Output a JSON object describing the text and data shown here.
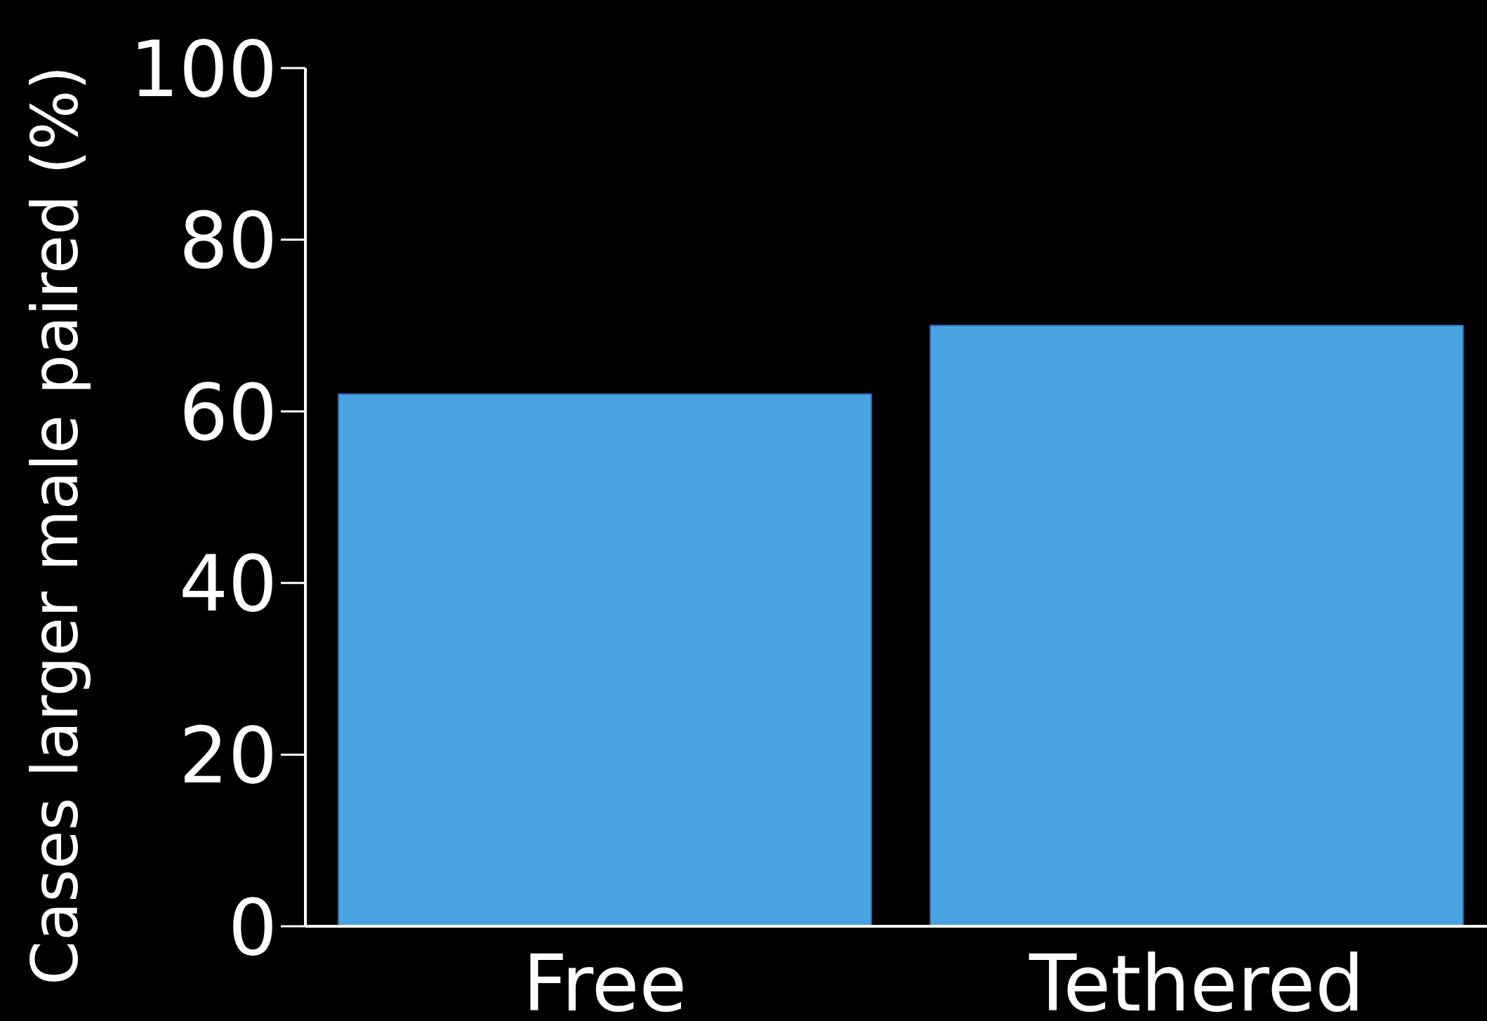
{
  "chart_data": {
    "type": "bar",
    "ylabel": "Cases larger male paired (%)",
    "categories": [
      "Free",
      "Tethered"
    ],
    "values": [
      62,
      70
    ],
    "color": "#4aa4e2",
    "ylim": [
      0,
      100
    ],
    "yticks": [
      0,
      20,
      40,
      60,
      80,
      100
    ],
    "grid": false
  }
}
